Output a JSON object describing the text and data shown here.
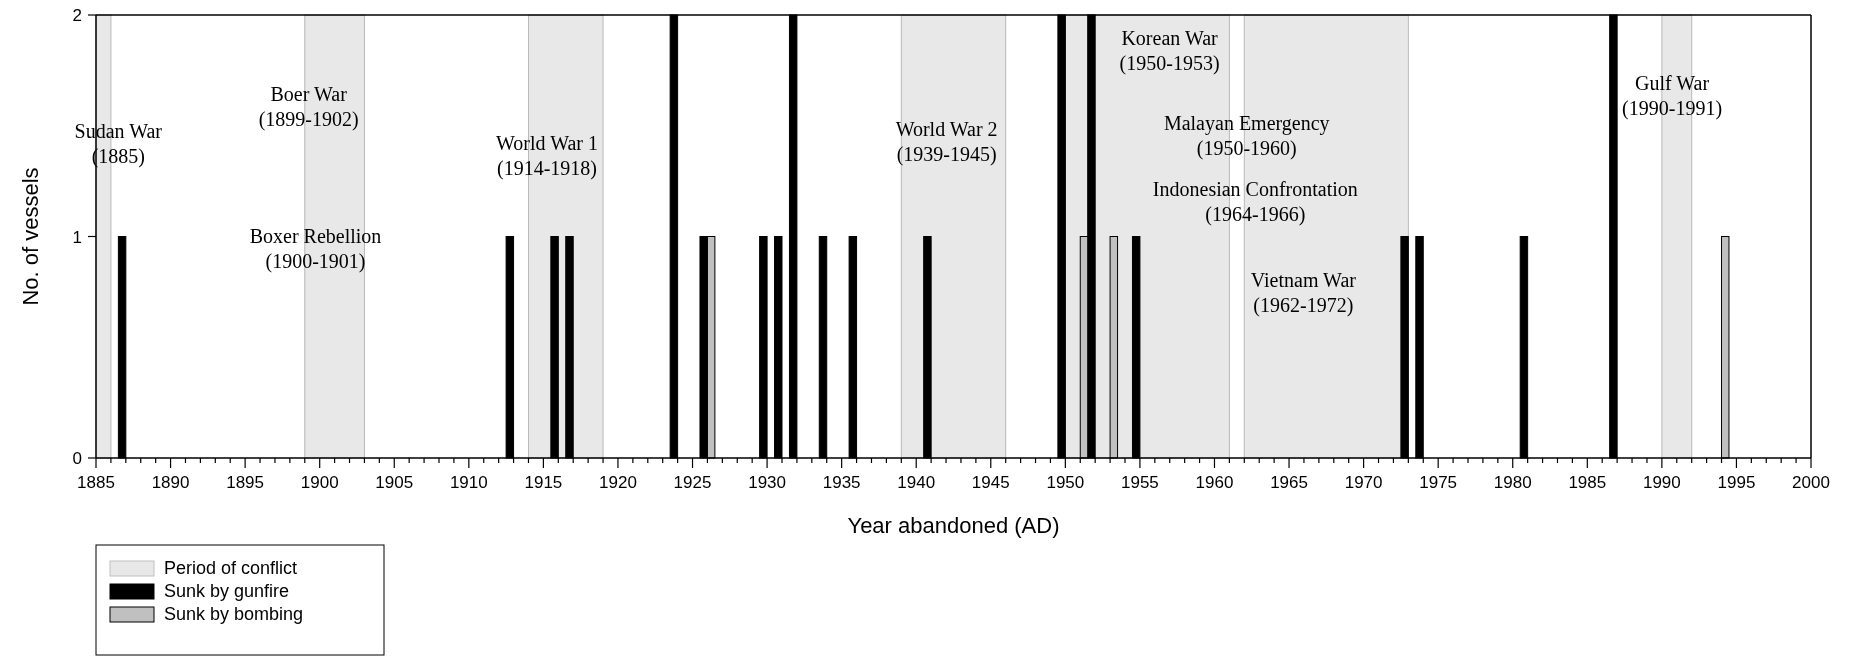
{
  "chart_data": {
    "type": "bar",
    "xlabel": "Year abandoned (AD)",
    "ylabel": "No. of vessels",
    "xlim": [
      1885,
      2000
    ],
    "ylim": [
      0,
      2
    ],
    "yticks": [
      0,
      1,
      2
    ],
    "xticks": [
      1885,
      {
        "value": 1886,
        "label": null
      },
      {
        "value": 1887,
        "label": null
      },
      {
        "value": 1888,
        "label": null
      },
      {
        "value": 1889,
        "label": null
      },
      1890,
      {
        "value": 1891,
        "label": null
      },
      {
        "value": 1892,
        "label": null
      },
      {
        "value": 1893,
        "label": null
      },
      {
        "value": 1894,
        "label": null
      },
      1895,
      {
        "value": 1896,
        "label": null
      },
      {
        "value": 1897,
        "label": null
      },
      {
        "value": 1898,
        "label": null
      },
      {
        "value": 1899,
        "label": null
      },
      1900,
      {
        "value": 1901,
        "label": null
      },
      {
        "value": 1902,
        "label": null
      },
      {
        "value": 1903,
        "label": null
      },
      {
        "value": 1904,
        "label": null
      },
      1905,
      {
        "value": 1906,
        "label": null
      },
      {
        "value": 1907,
        "label": null
      },
      {
        "value": 1908,
        "label": null
      },
      {
        "value": 1909,
        "label": null
      },
      1910,
      {
        "value": 1911,
        "label": null
      },
      {
        "value": 1912,
        "label": null
      },
      {
        "value": 1913,
        "label": null
      },
      {
        "value": 1914,
        "label": null
      },
      1915,
      {
        "value": 1916,
        "label": null
      },
      {
        "value": 1917,
        "label": null
      },
      {
        "value": 1918,
        "label": null
      },
      {
        "value": 1919,
        "label": null
      },
      1920,
      {
        "value": 1921,
        "label": null
      },
      {
        "value": 1922,
        "label": null
      },
      {
        "value": 1923,
        "label": null
      },
      {
        "value": 1924,
        "label": null
      },
      1925,
      {
        "value": 1926,
        "label": null
      },
      {
        "value": 1927,
        "label": null
      },
      {
        "value": 1928,
        "label": null
      },
      {
        "value": 1929,
        "label": null
      },
      1930,
      {
        "value": 1931,
        "label": null
      },
      {
        "value": 1932,
        "label": null
      },
      {
        "value": 1933,
        "label": null
      },
      {
        "value": 1934,
        "label": null
      },
      1935,
      {
        "value": 1936,
        "label": null
      },
      {
        "value": 1937,
        "label": null
      },
      {
        "value": 1938,
        "label": null
      },
      {
        "value": 1939,
        "label": null
      },
      1940,
      {
        "value": 1941,
        "label": null
      },
      {
        "value": 1942,
        "label": null
      },
      {
        "value": 1943,
        "label": null
      },
      {
        "value": 1944,
        "label": null
      },
      1945,
      {
        "value": 1946,
        "label": null
      },
      {
        "value": 1947,
        "label": null
      },
      {
        "value": 1948,
        "label": null
      },
      {
        "value": 1949,
        "label": null
      },
      1950,
      {
        "value": 1951,
        "label": null
      },
      {
        "value": 1952,
        "label": null
      },
      {
        "value": 1953,
        "label": null
      },
      {
        "value": 1954,
        "label": null
      },
      1955,
      {
        "value": 1956,
        "label": null
      },
      {
        "value": 1957,
        "label": null
      },
      {
        "value": 1958,
        "label": null
      },
      {
        "value": 1959,
        "label": null
      },
      1960,
      {
        "value": 1961,
        "label": null
      },
      {
        "value": 1962,
        "label": null
      },
      {
        "value": 1963,
        "label": null
      },
      {
        "value": 1964,
        "label": null
      },
      1965,
      {
        "value": 1966,
        "label": null
      },
      {
        "value": 1967,
        "label": null
      },
      {
        "value": 1968,
        "label": null
      },
      {
        "value": 1969,
        "label": null
      },
      1970,
      {
        "value": 1971,
        "label": null
      },
      {
        "value": 1972,
        "label": null
      },
      {
        "value": 1973,
        "label": null
      },
      {
        "value": 1974,
        "label": null
      },
      1975,
      {
        "value": 1976,
        "label": null
      },
      {
        "value": 1977,
        "label": null
      },
      {
        "value": 1978,
        "label": null
      },
      {
        "value": 1979,
        "label": null
      },
      1980,
      {
        "value": 1981,
        "label": null
      },
      {
        "value": 1982,
        "label": null
      },
      {
        "value": 1983,
        "label": null
      },
      {
        "value": 1984,
        "label": null
      },
      1985,
      {
        "value": 1986,
        "label": null
      },
      {
        "value": 1987,
        "label": null
      },
      {
        "value": 1988,
        "label": null
      },
      {
        "value": 1989,
        "label": null
      },
      1990,
      {
        "value": 1991,
        "label": null
      },
      {
        "value": 1992,
        "label": null
      },
      {
        "value": 1993,
        "label": null
      },
      {
        "value": 1994,
        "label": null
      },
      1995,
      {
        "value": 1996,
        "label": null
      },
      {
        "value": 1997,
        "label": null
      },
      {
        "value": 1998,
        "label": null
      },
      {
        "value": 1999,
        "label": null
      },
      2000
    ],
    "series": [
      {
        "name": "Sunk by gunfire",
        "color": "#000000",
        "x": [
          1887,
          1913,
          1916,
          1917,
          1924,
          1926,
          1930,
          1931,
          1932,
          1934,
          1936,
          1941,
          1950,
          1952,
          1955,
          1973,
          1974,
          1981,
          1987
        ],
        "values": [
          1,
          1,
          1,
          1,
          2,
          1,
          1,
          1,
          2,
          1,
          1,
          1,
          2,
          2,
          1,
          1,
          1,
          1,
          2
        ]
      },
      {
        "name": "Sunk by bombing",
        "color": "#c0c0c0",
        "x": [
          1926,
          1951,
          1953,
          1994
        ],
        "values": [
          1,
          1,
          1,
          1
        ]
      }
    ],
    "bands": [
      {
        "axis": "x",
        "from": 1885,
        "to": 1886,
        "label": "Period of conflict",
        "color": "#e8e8e8"
      },
      {
        "axis": "x",
        "from": 1899,
        "to": 1903,
        "color": "#e8e8e8"
      },
      {
        "axis": "x",
        "from": 1914,
        "to": 1919,
        "color": "#e8e8e8"
      },
      {
        "axis": "x",
        "from": 1939,
        "to": 1946,
        "color": "#e8e8e8"
      },
      {
        "axis": "x",
        "from": 1950,
        "to": 1961,
        "color": "#e8e8e8"
      },
      {
        "axis": "x",
        "from": 1962,
        "to": 1973,
        "color": "#e8e8e8"
      },
      {
        "axis": "x",
        "from": 1990,
        "to": 1992,
        "color": "#e8e8e8"
      }
    ],
    "annotations": [
      "Sudan War\n(1885)",
      "Boer War\n(1899-1902)",
      "Boxer Rebellion\n(1900-1901)",
      "World War 1\n(1914-1918)",
      "World War 2\n(1939-1945)",
      "Korean War\n(1950-1953)",
      "Malayan Emergency\n(1950-1960)",
      "Indonesian Confrontation\n(1964-1966)",
      "Vietnam War\n(1962-1972)",
      "Gulf War\n(1990-1991)"
    ],
    "legend": "bottom left"
  }
}
